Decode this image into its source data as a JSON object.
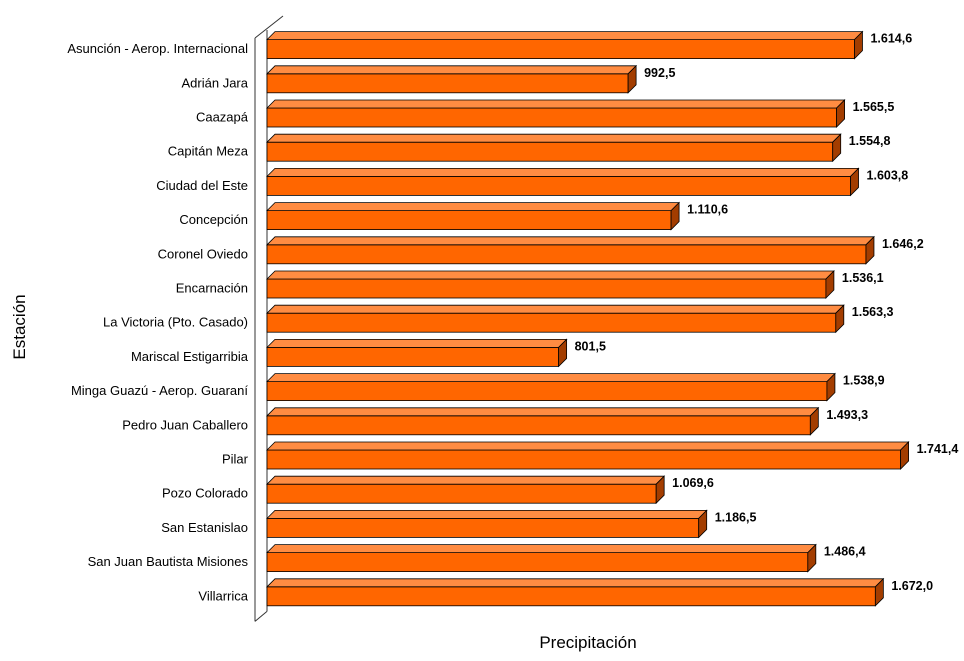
{
  "chart_data": {
    "type": "bar",
    "orientation": "horizontal",
    "style": "3d",
    "xlabel": "Precipitación",
    "ylabel": "Estación",
    "xlim": [
      0,
      1750
    ],
    "grid": false,
    "legend": "none",
    "colors": {
      "bar_front": "#ff6600",
      "bar_top": "#ff8c42",
      "bar_side": "#a33d00",
      "bar_edge": "#000000",
      "axis": "#333333",
      "text": "#000000"
    },
    "categories": [
      "Asunción - Aerop. Internacional",
      "Adrián Jara",
      "Caazapá",
      "Capitán Meza",
      "Ciudad del Este",
      "Concepción",
      "Coronel Oviedo",
      "Encarnación",
      "La Victoria (Pto. Casado)",
      "Mariscal Estigarribia",
      "Minga Guazú - Aerop. Guaraní",
      "Pedro Juan Caballero",
      "Pilar",
      "Pozo Colorado",
      "San Estanislao",
      "San Juan Bautista Misiones",
      "Villarrica"
    ],
    "values": [
      1614.6,
      992.5,
      1565.5,
      1554.8,
      1603.8,
      1110.6,
      1646.2,
      1536.1,
      1563.3,
      801.5,
      1538.9,
      1493.3,
      1741.4,
      1069.6,
      1186.5,
      1486.4,
      1672.0
    ],
    "data_labels": [
      "1.614,6",
      "992,5",
      "1.565,5",
      "1.554,8",
      "1.603,8",
      "1.110,6",
      "1.646,2",
      "1.536,1",
      "1.563,3",
      "801,5",
      "1.538,9",
      "1.493,3",
      "1.741,4",
      "1.069,6",
      "1.186,5",
      "1.486,4",
      "1.672,0"
    ]
  }
}
